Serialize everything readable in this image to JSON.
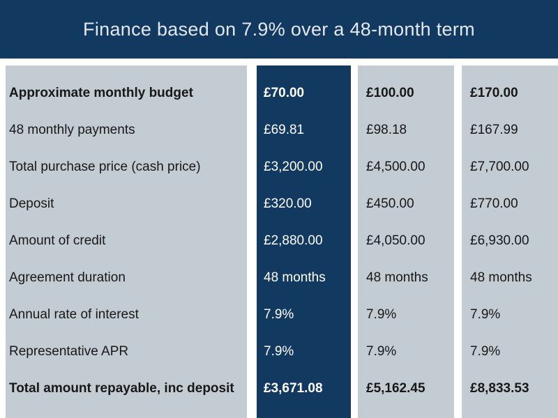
{
  "header": {
    "title": "Finance based on 7.9% over a 48-month term"
  },
  "table": {
    "row_labels": [
      "Approximate monthly budget",
      "48 monthly payments",
      "Total purchase price (cash price)",
      "Deposit",
      "Amount of credit",
      "Agreement duration",
      "Annual rate of interest",
      "Representative APR",
      "Total amount repayable, inc deposit"
    ],
    "columns": [
      {
        "name": "budget-option-1",
        "highlighted": true,
        "values": [
          "£70.00",
          "£69.81",
          "£3,200.00",
          "£320.00",
          "£2,880.00",
          "48 months",
          "7.9%",
          "7.9%",
          "£3,671.08"
        ]
      },
      {
        "name": "budget-option-2",
        "highlighted": false,
        "values": [
          "£100.00",
          "£98.18",
          "£4,500.00",
          "£450.00",
          "£4,050.00",
          "48 months",
          "7.9%",
          "7.9%",
          "£5,162.45"
        ]
      },
      {
        "name": "budget-option-3",
        "highlighted": false,
        "values": [
          "£170.00",
          "£167.99",
          "£7,700.00",
          "£770.00",
          "£6,930.00",
          "48 months",
          "7.9%",
          "7.9%",
          "£8,833.53"
        ]
      }
    ]
  },
  "colors": {
    "navy": "#123a60",
    "light_gray": "#c3ccd3",
    "background": "#ffffff",
    "header_text": "#e2e8ee",
    "label_text": "#16181a"
  }
}
